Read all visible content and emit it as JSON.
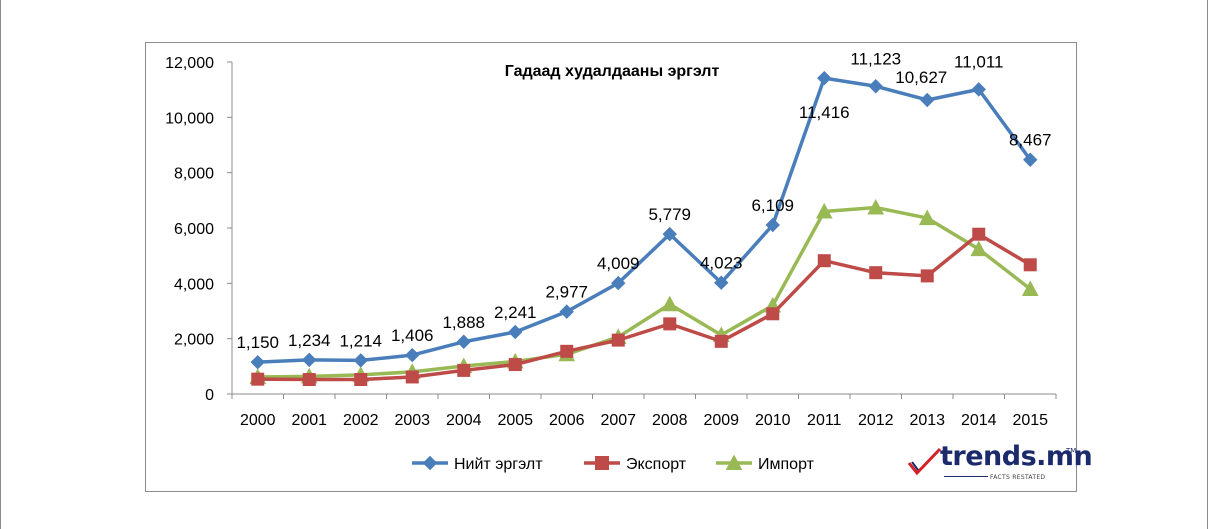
{
  "chart_data": {
    "type": "line",
    "title": "Гадаад худалдааны эргэлт",
    "xlabel": "",
    "ylabel": "",
    "ylim": [
      0,
      12000
    ],
    "yticks": [
      0,
      2000,
      4000,
      6000,
      8000,
      10000,
      12000
    ],
    "ytick_labels": [
      "0",
      "2,000",
      "4,000",
      "6,000",
      "8,000",
      "10,000",
      "12,000"
    ],
    "categories": [
      "2000",
      "2001",
      "2002",
      "2003",
      "2004",
      "2005",
      "2006",
      "2007",
      "2008",
      "2009",
      "2010",
      "2011",
      "2012",
      "2013",
      "2014",
      "2015"
    ],
    "grid": false,
    "legend_position": "bottom",
    "series": [
      {
        "name": "Нийт эргэлт",
        "color": "#4a7ebb",
        "marker": "diamond",
        "values": [
          1150,
          1234,
          1214,
          1406,
          1888,
          2241,
          2977,
          4009,
          5779,
          4023,
          6109,
          11416,
          11123,
          10627,
          11011,
          8467
        ],
        "data_labels": [
          "1,150",
          "1,234",
          "1,214",
          "1,406",
          "1,888",
          "2,241",
          "2,977",
          "4,009",
          "5,779",
          "4,023",
          "6,109",
          "11,416",
          "11,123",
          "10,627",
          "11,011",
          "8,467"
        ]
      },
      {
        "name": "Экспорт",
        "color": "#be4b48",
        "marker": "square",
        "values": [
          536,
          523,
          524,
          616,
          853,
          1065,
          1543,
          1947,
          2535,
          1903,
          2899,
          4818,
          4385,
          4269,
          5775,
          4670
        ]
      },
      {
        "name": "Импорт",
        "color": "#98b954",
        "marker": "triangle",
        "values": [
          615,
          638,
          691,
          801,
          1011,
          1177,
          1435,
          2062,
          3245,
          2131,
          3200,
          6598,
          6739,
          6358,
          5236,
          3797
        ]
      }
    ]
  },
  "brand": {
    "name": "trends.mn",
    "tm": "TM",
    "tagline": "FACTS RESTATED",
    "color": "#1b2a6b",
    "accent": "#d42027"
  }
}
